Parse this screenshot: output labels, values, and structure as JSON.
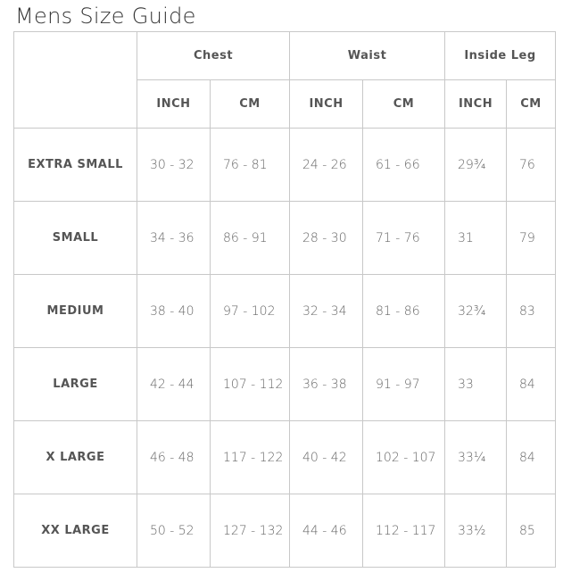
{
  "title": "Mens Size Guide",
  "groups": [
    "Chest",
    "Waist",
    "Inside Leg"
  ],
  "units": [
    "INCH",
    "CM",
    "INCH",
    "CM",
    "INCH",
    "CM"
  ],
  "rows": [
    {
      "size": "EXTRA SMALL",
      "values": [
        "30 - 32",
        "76 - 81",
        "24 - 26",
        "61 - 66",
        "29¾",
        "76"
      ]
    },
    {
      "size": "SMALL",
      "values": [
        "34 - 36",
        "86 - 91",
        "28 - 30",
        "71 - 76",
        "31",
        "79"
      ]
    },
    {
      "size": "MEDIUM",
      "values": [
        "38 - 40",
        "97 - 102",
        "32 - 34",
        "81 - 86",
        "32¾",
        "83"
      ]
    },
    {
      "size": "LARGE",
      "values": [
        "42 - 44",
        "107 - 112",
        "36 - 38",
        "91 - 97",
        "33",
        "84"
      ]
    },
    {
      "size": "X LARGE",
      "values": [
        "46 - 48",
        "117 - 122",
        "40 - 42",
        "102 - 107",
        "33¼",
        "84"
      ]
    },
    {
      "size": "XX LARGE",
      "values": [
        "50 - 52",
        "127 - 132",
        "44 - 46",
        "112 - 117",
        "33½",
        "85"
      ]
    }
  ]
}
